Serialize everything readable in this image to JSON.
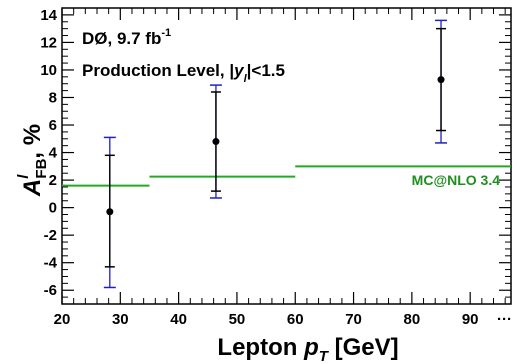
{
  "chart_data": {
    "type": "scatter",
    "title": "",
    "annotations": {
      "experiment": "DØ, 9.7 fb",
      "experiment_sup": "-1",
      "level_prefix": "Production Level, |",
      "level_var": "y",
      "level_sub": "l",
      "level_suffix": "|<1.5"
    },
    "xlabel": {
      "main": "Lepton ",
      "var": "p",
      "sub": "T",
      "unit": " [GeV]"
    },
    "ylabel": {
      "var": "A",
      "sup": "l",
      "sub": "FB",
      "unit": ", %"
    },
    "xlim": [
      20,
      97
    ],
    "ylim": [
      -7,
      14.5
    ],
    "x_ticks": [
      20,
      30,
      40,
      50,
      60,
      70,
      80,
      90
    ],
    "x_overflow_label": "···",
    "y_ticks": [
      -6,
      -4,
      -2,
      0,
      2,
      4,
      6,
      8,
      10,
      12,
      14
    ],
    "series": [
      {
        "type": "points_with_errors",
        "color": "#000000",
        "syst_color": "#2020c0",
        "points": [
          {
            "x": 28.2,
            "y": -0.3,
            "stat": [
              -4.3,
              3.8
            ],
            "total": [
              -5.8,
              5.1
            ]
          },
          {
            "x": 46.4,
            "y": 4.8,
            "stat": [
              1.2,
              8.4
            ],
            "total": [
              0.7,
              8.9
            ]
          },
          {
            "x": 85.0,
            "y": 9.3,
            "stat": [
              5.6,
              13.0
            ],
            "total": [
              4.7,
              13.6
            ]
          }
        ]
      },
      {
        "name": "MC@NLO 3.4",
        "type": "step",
        "color": "#22aa22",
        "bins": [
          {
            "x0": 20,
            "x1": 35,
            "y": 1.6
          },
          {
            "x0": 35,
            "x1": 60,
            "y": 2.25
          },
          {
            "x0": 60,
            "x1": 97,
            "y": 3.0
          }
        ]
      }
    ],
    "grid": false,
    "legend": "inline-right"
  }
}
